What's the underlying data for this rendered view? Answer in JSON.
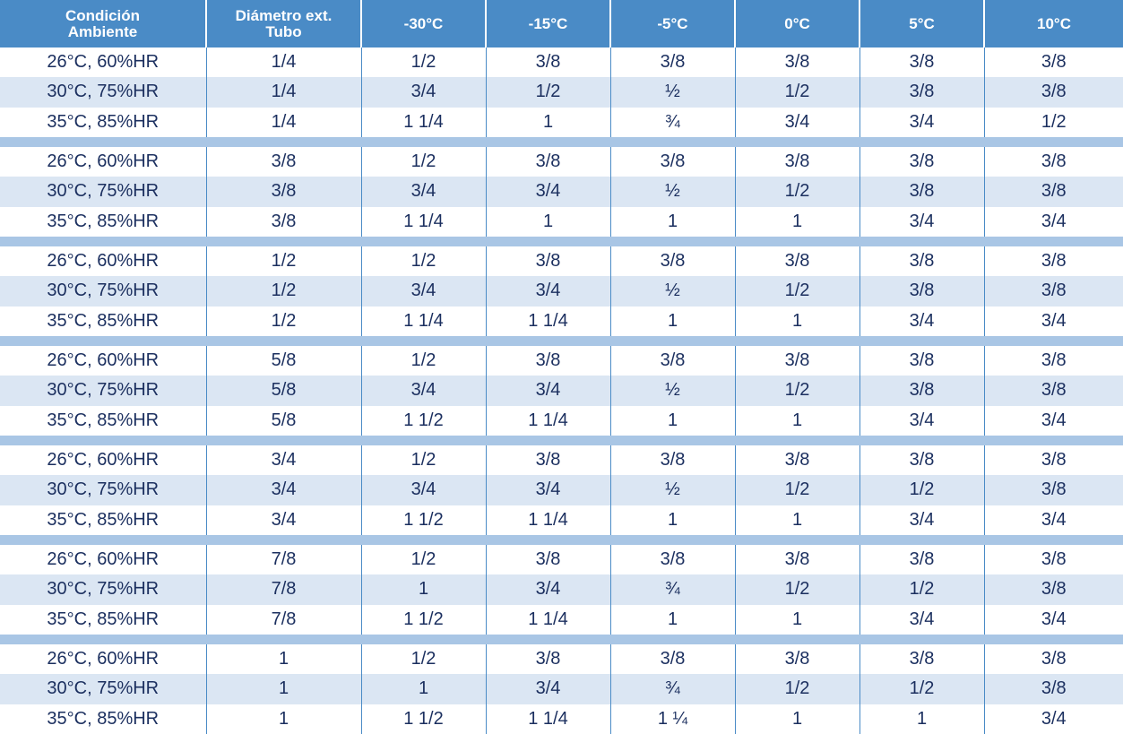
{
  "table": {
    "header": [
      [
        "Condición",
        "Ambiente"
      ],
      [
        "Diámetro ext.",
        "Tubo"
      ],
      [
        "-30°C"
      ],
      [
        "-15°C"
      ],
      [
        "-5°C"
      ],
      [
        "0°C"
      ],
      [
        "5°C"
      ],
      [
        "10°C"
      ]
    ],
    "groups": [
      {
        "rows": [
          [
            "26°C, 60%HR",
            "1/4",
            "1/2",
            "3/8",
            "3/8",
            "3/8",
            "3/8",
            "3/8"
          ],
          [
            "30°C, 75%HR",
            "1/4",
            "3/4",
            "1/2",
            "½",
            "1/2",
            "3/8",
            "3/8"
          ],
          [
            "35°C, 85%HR",
            "1/4",
            "1 1/4",
            "1",
            "¾",
            "3/4",
            "3/4",
            "1/2"
          ]
        ]
      },
      {
        "rows": [
          [
            "26°C, 60%HR",
            "3/8",
            "1/2",
            "3/8",
            "3/8",
            "3/8",
            "3/8",
            "3/8"
          ],
          [
            "30°C, 75%HR",
            "3/8",
            "3/4",
            "3/4",
            "½",
            "1/2",
            "3/8",
            "3/8"
          ],
          [
            "35°C, 85%HR",
            "3/8",
            "1 1/4",
            "1",
            "1",
            "1",
            "3/4",
            "3/4"
          ]
        ]
      },
      {
        "rows": [
          [
            "26°C, 60%HR",
            "1/2",
            "1/2",
            "3/8",
            "3/8",
            "3/8",
            "3/8",
            "3/8"
          ],
          [
            "30°C, 75%HR",
            "1/2",
            "3/4",
            "3/4",
            "½",
            "1/2",
            "3/8",
            "3/8"
          ],
          [
            "35°C, 85%HR",
            "1/2",
            "1 1/4",
            "1 1/4",
            "1",
            "1",
            "3/4",
            "3/4"
          ]
        ]
      },
      {
        "rows": [
          [
            "26°C, 60%HR",
            "5/8",
            "1/2",
            "3/8",
            "3/8",
            "3/8",
            "3/8",
            "3/8"
          ],
          [
            "30°C, 75%HR",
            "5/8",
            "3/4",
            "3/4",
            "½",
            "1/2",
            "3/8",
            "3/8"
          ],
          [
            "35°C, 85%HR",
            "5/8",
            "1 1/2",
            "1 1/4",
            "1",
            "1",
            "3/4",
            "3/4"
          ]
        ]
      },
      {
        "rows": [
          [
            "26°C, 60%HR",
            "3/4",
            "1/2",
            "3/8",
            "3/8",
            "3/8",
            "3/8",
            "3/8"
          ],
          [
            "30°C, 75%HR",
            "3/4",
            "3/4",
            "3/4",
            "½",
            "1/2",
            "1/2",
            "3/8"
          ],
          [
            "35°C, 85%HR",
            "3/4",
            "1 1/2",
            "1 1/4",
            "1",
            "1",
            "3/4",
            "3/4"
          ]
        ]
      },
      {
        "rows": [
          [
            "26°C, 60%HR",
            "7/8",
            "1/2",
            "3/8",
            "3/8",
            "3/8",
            "3/8",
            "3/8"
          ],
          [
            "30°C, 75%HR",
            "7/8",
            "1",
            "3/4",
            "¾",
            "1/2",
            "1/2",
            "3/8"
          ],
          [
            "35°C, 85%HR",
            "7/8",
            "1 1/2",
            "1 1/4",
            "1",
            "1",
            "3/4",
            "3/4"
          ]
        ]
      },
      {
        "rows": [
          [
            "26°C, 60%HR",
            "1",
            "1/2",
            "3/8",
            "3/8",
            "3/8",
            "3/8",
            "3/8"
          ],
          [
            "30°C, 75%HR",
            "1",
            "1",
            "3/4",
            "¾",
            "1/2",
            "1/2",
            "3/8"
          ],
          [
            "35°C, 85%HR",
            "1",
            "1 1/2",
            "1 1/4",
            "1 ¼",
            "1",
            "1",
            "3/4"
          ]
        ]
      }
    ]
  }
}
